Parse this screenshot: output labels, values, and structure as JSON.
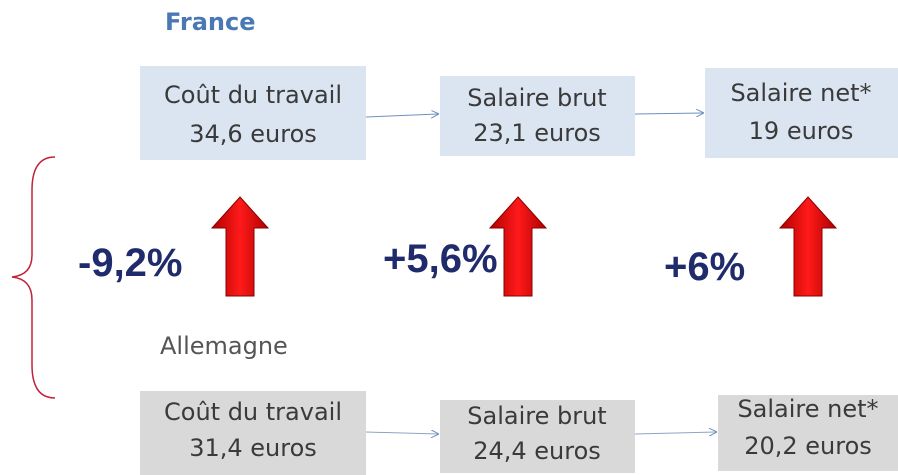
{
  "france": {
    "label": "France",
    "boxes": [
      {
        "title": "Coût du travail",
        "value": "34,6 euros"
      },
      {
        "title": "Salaire brut",
        "value": "23,1 euros"
      },
      {
        "title": "Salaire net*",
        "value": "19 euros"
      }
    ]
  },
  "differences": [
    "-9,2%",
    "+5,6%",
    "+6%"
  ],
  "allemagne": {
    "label": "Allemagne",
    "boxes": [
      {
        "title": "Coût du travail",
        "value": "31,4 euros"
      },
      {
        "title": "Salaire brut",
        "value": "24,4 euros"
      },
      {
        "title": "Salaire net*",
        "value": "20,2 euros"
      }
    ]
  }
}
